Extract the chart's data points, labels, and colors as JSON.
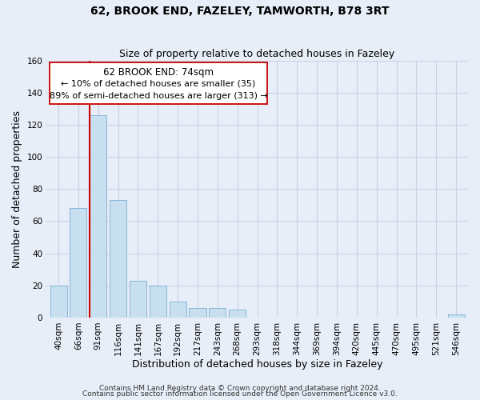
{
  "title": "62, BROOK END, FAZELEY, TAMWORTH, B78 3RT",
  "subtitle": "Size of property relative to detached houses in Fazeley",
  "xlabel": "Distribution of detached houses by size in Fazeley",
  "ylabel": "Number of detached properties",
  "bar_color": "#c8dff0",
  "bar_edge_color": "#7aafd4",
  "categories": [
    "40sqm",
    "66sqm",
    "91sqm",
    "116sqm",
    "141sqm",
    "167sqm",
    "192sqm",
    "217sqm",
    "243sqm",
    "268sqm",
    "293sqm",
    "318sqm",
    "344sqm",
    "369sqm",
    "394sqm",
    "420sqm",
    "445sqm",
    "470sqm",
    "495sqm",
    "521sqm",
    "546sqm"
  ],
  "values": [
    20,
    68,
    126,
    73,
    23,
    20,
    10,
    6,
    6,
    5,
    0,
    0,
    0,
    0,
    0,
    0,
    0,
    0,
    0,
    0,
    2
  ],
  "ylim": [
    0,
    160
  ],
  "yticks": [
    0,
    20,
    40,
    60,
    80,
    100,
    120,
    140,
    160
  ],
  "property_line_color": "#cc0000",
  "annotation_title": "62 BROOK END: 74sqm",
  "annotation_line1": "← 10% of detached houses are smaller (35)",
  "annotation_line2": "89% of semi-detached houses are larger (313) →",
  "annotation_box_facecolor": "#ffffff",
  "annotation_box_edgecolor": "#cc0000",
  "footer_line1": "Contains HM Land Registry data © Crown copyright and database right 2024.",
  "footer_line2": "Contains public sector information licensed under the Open Government Licence v3.0.",
  "background_color": "#e8eef8",
  "grid_color": "#c8d0e8",
  "title_fontsize": 10,
  "subtitle_fontsize": 9,
  "axis_label_fontsize": 9,
  "tick_fontsize": 7.5,
  "footer_fontsize": 6.5
}
